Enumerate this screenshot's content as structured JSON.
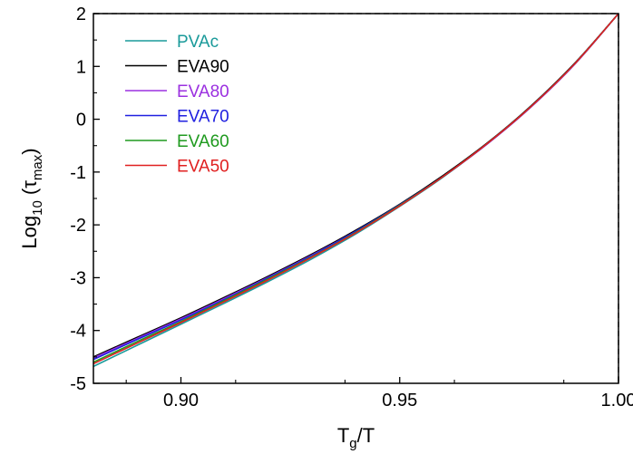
{
  "chart_data": {
    "type": "line",
    "title": "",
    "xlabel": {
      "main": "T",
      "sub": "g",
      "rest": "/T"
    },
    "ylabel": {
      "main": "Log",
      "sub1": "10",
      "mid": " (τ",
      "sub2": "max",
      "end": ")"
    },
    "xlim": [
      0.88,
      1.0
    ],
    "ylim": [
      -5,
      2
    ],
    "x_major_ticks": [
      0.9,
      0.95,
      1.0
    ],
    "x_tick_labels": [
      "0.90",
      "0.95",
      "1.00"
    ],
    "y_major_ticks": [
      -5,
      -4,
      -3,
      -2,
      -1,
      0,
      1,
      2
    ],
    "y_tick_labels": [
      "-5",
      "-4",
      "-3",
      "-2",
      "-1",
      "0",
      "1",
      "2"
    ],
    "legend_position": "top-left",
    "reference_lines": {
      "y": 2,
      "x": 1.0,
      "style": "dashed"
    },
    "series": [
      {
        "name": "PVAc",
        "color": "#1a9a9a",
        "x": [
          0.88,
          0.89,
          0.9,
          0.91,
          0.92,
          0.93,
          0.94,
          0.95,
          0.96,
          0.97,
          0.98,
          0.99,
          1.0
        ],
        "y": [
          -4.68,
          -4.28,
          -3.88,
          -3.48,
          -3.07,
          -2.64,
          -2.17,
          -1.65,
          -1.09,
          -0.46,
          0.25,
          1.06,
          2.0
        ]
      },
      {
        "name": "EVA90",
        "color": "#000000",
        "x": [
          0.88,
          0.89,
          0.9,
          0.91,
          0.92,
          0.93,
          0.94,
          0.95,
          0.96,
          0.97,
          0.98,
          0.99,
          1.0
        ],
        "y": [
          -4.5,
          -4.13,
          -3.76,
          -3.37,
          -2.97,
          -2.55,
          -2.1,
          -1.61,
          -1.06,
          -0.45,
          0.25,
          1.06,
          2.0
        ]
      },
      {
        "name": "EVA80",
        "color": "#9b30e0",
        "x": [
          0.88,
          0.89,
          0.9,
          0.91,
          0.92,
          0.93,
          0.94,
          0.95,
          0.96,
          0.97,
          0.98,
          0.99,
          1.0
        ],
        "y": [
          -4.52,
          -4.15,
          -3.78,
          -3.39,
          -2.99,
          -2.57,
          -2.12,
          -1.63,
          -1.08,
          -0.47,
          0.23,
          1.04,
          2.0
        ]
      },
      {
        "name": "EVA70",
        "color": "#2020e0",
        "x": [
          0.88,
          0.89,
          0.9,
          0.91,
          0.92,
          0.93,
          0.94,
          0.95,
          0.96,
          0.97,
          0.98,
          0.99,
          1.0
        ],
        "y": [
          -4.55,
          -4.17,
          -3.8,
          -3.41,
          -3.0,
          -2.58,
          -2.12,
          -1.62,
          -1.08,
          -0.46,
          0.24,
          1.05,
          2.0
        ]
      },
      {
        "name": "EVA60",
        "color": "#1f9a1f",
        "x": [
          0.88,
          0.89,
          0.9,
          0.91,
          0.92,
          0.93,
          0.94,
          0.95,
          0.96,
          0.97,
          0.98,
          0.99,
          1.0
        ],
        "y": [
          -4.6,
          -4.21,
          -3.83,
          -3.43,
          -3.02,
          -2.6,
          -2.14,
          -1.63,
          -1.08,
          -0.46,
          0.24,
          1.05,
          2.0
        ]
      },
      {
        "name": "EVA50",
        "color": "#e02020",
        "x": [
          0.88,
          0.89,
          0.9,
          0.91,
          0.92,
          0.93,
          0.94,
          0.95,
          0.96,
          0.97,
          0.98,
          0.99,
          1.0
        ],
        "y": [
          -4.63,
          -4.24,
          -3.85,
          -3.45,
          -3.04,
          -2.61,
          -2.15,
          -1.64,
          -1.08,
          -0.46,
          0.24,
          1.05,
          2.0
        ]
      }
    ]
  }
}
